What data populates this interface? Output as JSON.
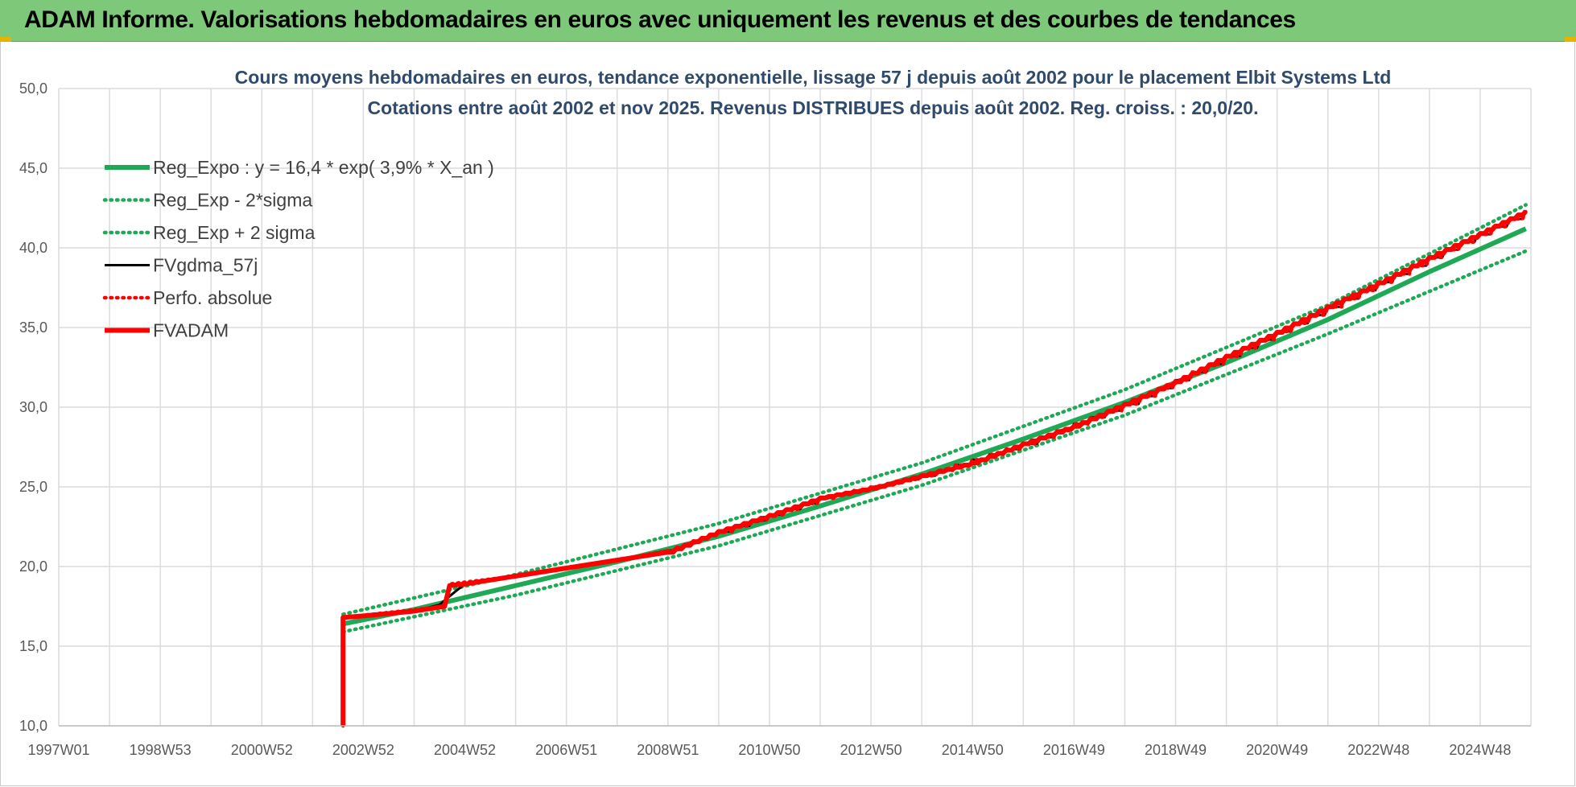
{
  "banner": {
    "title": "ADAM Informe. Valorisations hebdomadaires en euros avec uniquement les revenus et des courbes de tendances"
  },
  "colors": {
    "banner": "#7ec87a",
    "reg": "#1fa855",
    "fvgdma": "#000000",
    "fvadam": "#ff0000",
    "title_text": "#2f4a6a"
  },
  "chart_data": {
    "type": "line",
    "title_line1": "Cours moyens hebdomadaires en euros, tendance exponentielle, lissage 57 j depuis août 2002 pour le placement Elbit Systems Ltd",
    "title_line2": "Cotations entre août 2002 et nov 2025.  Revenus DISTRIBUES depuis août 2002. Reg. croiss. : 20,0/20.",
    "xlabel": "",
    "ylabel": "",
    "x_range": [
      1997.0,
      2026.0
    ],
    "ylim": [
      10,
      50
    ],
    "y_ticks": [
      "10,0",
      "15,0",
      "20,0",
      "25,0",
      "30,0",
      "35,0",
      "40,0",
      "45,0",
      "50,0"
    ],
    "x_ticks": [
      {
        "label": "1997W01",
        "x": 1997.0
      },
      {
        "label": "1998W53",
        "x": 1999.0
      },
      {
        "label": "2000W52",
        "x": 2001.0
      },
      {
        "label": "2002W52",
        "x": 2003.0
      },
      {
        "label": "2004W52",
        "x": 2005.0
      },
      {
        "label": "2006W51",
        "x": 2007.0
      },
      {
        "label": "2008W51",
        "x": 2009.0
      },
      {
        "label": "2010W50",
        "x": 2011.0
      },
      {
        "label": "2012W50",
        "x": 2013.0
      },
      {
        "label": "2014W50",
        "x": 2015.0
      },
      {
        "label": "2016W49",
        "x": 2017.0
      },
      {
        "label": "2018W49",
        "x": 2019.0
      },
      {
        "label": "2020W49",
        "x": 2021.0
      },
      {
        "label": "2022W48",
        "x": 2023.0
      },
      {
        "label": "2024W48",
        "x": 2025.0
      }
    ],
    "grid": true,
    "legend_position": "top-left",
    "legend": [
      {
        "name": "Reg_Expo : y = 16,4 * exp( 3,9% *  X_an )",
        "style": "solid-thick",
        "color": "#1fa855"
      },
      {
        "name": "Reg_Exp - 2*sigma",
        "style": "dotted",
        "color": "#1fa855"
      },
      {
        "name": "Reg_Exp + 2 sigma",
        "style": "dotted",
        "color": "#1fa855"
      },
      {
        "name": "FVgdma_57j",
        "style": "solid",
        "color": "#000000"
      },
      {
        "name": "Perfo. absolue",
        "style": "dotted",
        "color": "#ff0000"
      },
      {
        "name": "FVADAM",
        "style": "solid-thick",
        "color": "#ff0000"
      }
    ],
    "series": [
      {
        "name": "Reg_Expo : y = 16,4 * exp( 3,9% *  X_an )",
        "x": [
          2002.6,
          2004.0,
          2006.0,
          2008.0,
          2010.0,
          2012.0,
          2014.0,
          2016.0,
          2018.0,
          2020.0,
          2022.0,
          2024.0,
          2025.9
        ],
        "y": [
          16.4,
          17.3,
          18.8,
          20.3,
          21.9,
          23.8,
          25.8,
          28.0,
          30.3,
          32.8,
          35.5,
          38.5,
          41.2
        ]
      },
      {
        "name": "Reg_Exp - 2*sigma",
        "x": [
          2002.6,
          2006.0,
          2010.0,
          2014.0,
          2018.0,
          2022.0,
          2025.9
        ],
        "y": [
          15.9,
          18.2,
          21.3,
          25.1,
          29.5,
          34.6,
          39.8
        ]
      },
      {
        "name": "Reg_Exp + 2 sigma",
        "x": [
          2002.6,
          2006.0,
          2010.0,
          2014.0,
          2018.0,
          2022.0,
          2025.9
        ],
        "y": [
          17.0,
          19.5,
          22.7,
          26.5,
          31.1,
          36.4,
          42.7
        ]
      },
      {
        "name": "FVgdma_57j",
        "x": [
          2002.6,
          2002.6,
          2003.0,
          2004.0,
          2004.5,
          2004.8,
          2005.0,
          2006.0,
          2007.0,
          2008.0,
          2009.0,
          2010.0,
          2012.0,
          2014.0,
          2016.0,
          2018.0,
          2020.0,
          2022.0,
          2024.0,
          2025.9
        ],
        "y": [
          10.0,
          16.8,
          16.9,
          17.2,
          17.6,
          18.4,
          18.9,
          19.4,
          19.9,
          20.4,
          21.0,
          22.2,
          24.3,
          25.7,
          27.7,
          30.2,
          33.2,
          36.3,
          39.4,
          42.3
        ]
      },
      {
        "name": "Perfo. absolue",
        "x": [
          2002.6,
          2002.6,
          2004.6,
          2004.7,
          2006.0,
          2008.0,
          2009.0,
          2010.0,
          2012.0,
          2014.0,
          2016.0,
          2018.0,
          2020.0,
          2022.0,
          2024.0,
          2025.9
        ],
        "y": [
          10.0,
          16.8,
          17.5,
          18.9,
          19.4,
          20.4,
          21.0,
          22.2,
          24.3,
          25.7,
          27.7,
          30.2,
          33.2,
          36.3,
          39.4,
          42.3
        ]
      },
      {
        "name": "FVADAM",
        "x": [
          2002.6,
          2002.6,
          2003.0,
          2004.0,
          2004.6,
          2004.7,
          2005.0,
          2006.0,
          2007.0,
          2008.0,
          2009.0,
          2010.0,
          2011.0,
          2012.0,
          2013.0,
          2014.0,
          2015.0,
          2016.0,
          2017.0,
          2018.0,
          2019.0,
          2020.0,
          2021.0,
          2022.0,
          2023.0,
          2024.0,
          2025.0,
          2025.9
        ],
        "y": [
          10.0,
          16.8,
          16.9,
          17.2,
          17.5,
          18.8,
          18.9,
          19.4,
          19.9,
          20.4,
          20.9,
          22.2,
          23.2,
          24.3,
          24.9,
          25.7,
          26.5,
          27.7,
          28.8,
          30.2,
          31.6,
          33.2,
          34.7,
          36.3,
          37.8,
          39.4,
          40.9,
          42.3
        ]
      }
    ]
  }
}
